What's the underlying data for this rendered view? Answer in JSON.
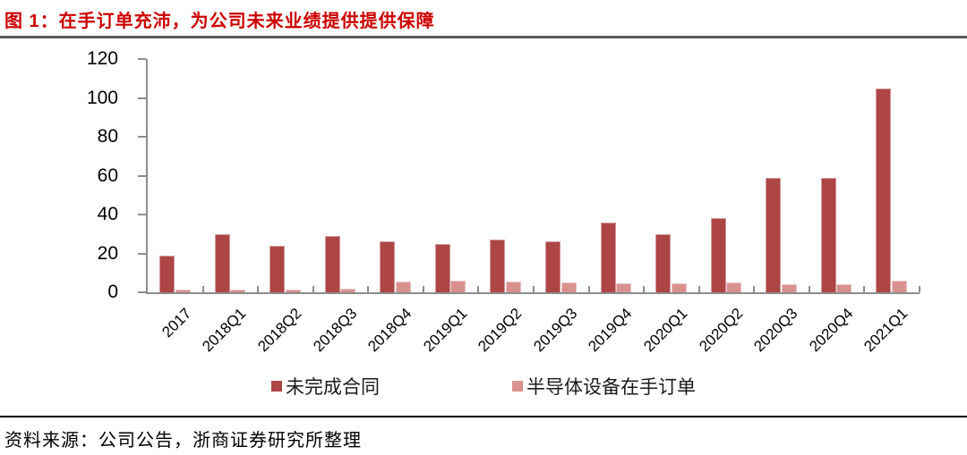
{
  "figure": {
    "title": "图 1：在手订单充沛，为公司未来业绩提供提供保障",
    "source_note": "资料来源：公司公告，浙商证券研究所整理"
  },
  "chart_data": {
    "type": "bar",
    "title": "在手订单充沛，为公司未来业绩提供提供保障",
    "categories": [
      "2017",
      "2018Q1",
      "2018Q2",
      "2018Q3",
      "2018Q4",
      "2019Q1",
      "2019Q2",
      "2019Q3",
      "2019Q4",
      "2020Q1",
      "2020Q2",
      "2020Q3",
      "2020Q4",
      "2021Q1"
    ],
    "series": [
      {
        "name": "未完成合同",
        "color": "#AD4545",
        "values": [
          19,
          30,
          24,
          29,
          26,
          25,
          27,
          26,
          36,
          30,
          38,
          59,
          59,
          105
        ]
      },
      {
        "name": "半导体设备在手订单",
        "color": "#D99190",
        "values": [
          1.5,
          1.5,
          1.5,
          2,
          5.5,
          6,
          5.5,
          5,
          4.5,
          4.5,
          5,
          4,
          4,
          6
        ]
      }
    ],
    "xlabel": "",
    "ylabel": "",
    "ylim": [
      0,
      120
    ],
    "yticks": [
      0,
      20,
      40,
      60,
      80,
      100,
      120
    ],
    "grid": false,
    "legend_position": "bottom",
    "x_label_rotation_deg": -45
  },
  "colors": {
    "title_text": "#CC0000",
    "title_rule": "#595959",
    "axis": "#8C8C8C",
    "source_rule": "#000000",
    "text": "#000000"
  }
}
